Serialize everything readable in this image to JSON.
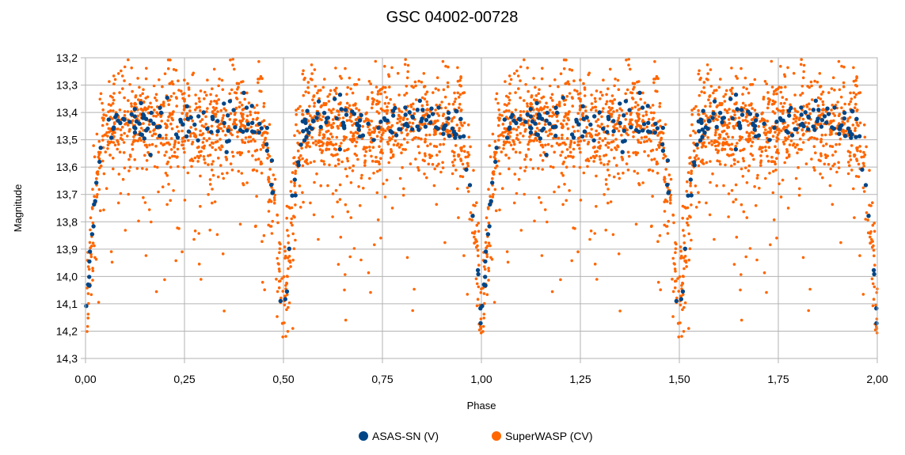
{
  "chart_data": {
    "type": "scatter",
    "title": "GSC 04002-00728",
    "xlabel": "Phase",
    "ylabel": "Magnitude",
    "xlim": [
      0,
      2
    ],
    "ylim": [
      13.2,
      14.3
    ],
    "y_inverted": true,
    "grid": true,
    "legend_position": "bottom",
    "x_ticks": [
      "0,00",
      "0,25",
      "0,50",
      "0,75",
      "1,00",
      "1,25",
      "1,50",
      "1,75",
      "2,00"
    ],
    "y_ticks": [
      "13,2",
      "13,3",
      "13,4",
      "13,5",
      "13,6",
      "13,7",
      "13,8",
      "13,9",
      "14,0",
      "14,1",
      "14,2",
      "14,3"
    ],
    "light_curve_model": {
      "period_in_phase": 1.0,
      "minima_phases": [
        0.0,
        0.5
      ],
      "maximum_level": 13.44,
      "primary_minimum_depth": 14.25,
      "secondary_minimum_depth": 14.25,
      "eclipse_half_width": 0.05
    },
    "series": [
      {
        "name": "ASAS-SN (V)",
        "color": "#004586",
        "points_per_cycle": 220,
        "scatter": 0.04
      },
      {
        "name": "SuperWASP (CV)",
        "color": "#ff6600",
        "points_per_cycle": 1700,
        "scatter": 0.1
      }
    ]
  }
}
